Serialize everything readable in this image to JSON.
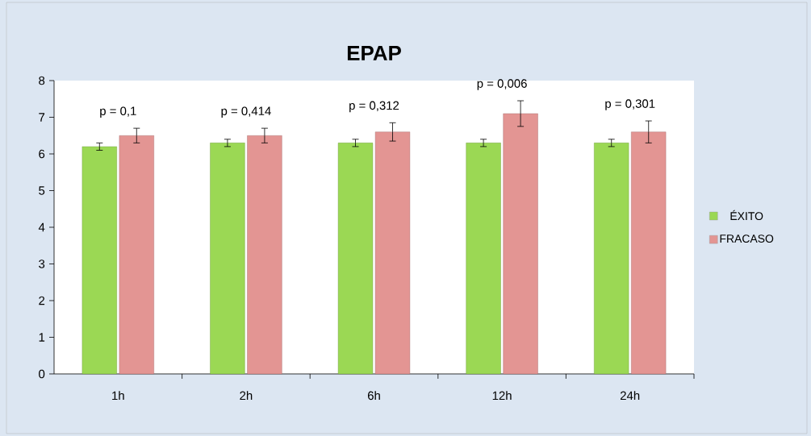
{
  "chart_data": {
    "type": "bar",
    "title": "EPAP",
    "categories": [
      "1h",
      "2h",
      "6h",
      "12h",
      "24h"
    ],
    "series": [
      {
        "name": "ÉXITO",
        "color": "#9bd854",
        "values": [
          6.2,
          6.3,
          6.3,
          6.3,
          6.3
        ],
        "errors": [
          0.1,
          0.1,
          0.1,
          0.1,
          0.1
        ]
      },
      {
        "name": "FRACASO",
        "color": "#e39593",
        "values": [
          6.5,
          6.5,
          6.6,
          7.1,
          6.6
        ],
        "errors": [
          0.2,
          0.2,
          0.25,
          0.35,
          0.3
        ]
      }
    ],
    "ylim": [
      0,
      8
    ],
    "yticks": [
      0,
      1,
      2,
      3,
      4,
      5,
      6,
      7,
      8
    ],
    "grid": false,
    "legend": "right",
    "annotations": [
      "p = 0,1",
      "p = 0,414",
      "p = 0,312",
      "p = 0,006",
      "p = 0,301"
    ]
  }
}
